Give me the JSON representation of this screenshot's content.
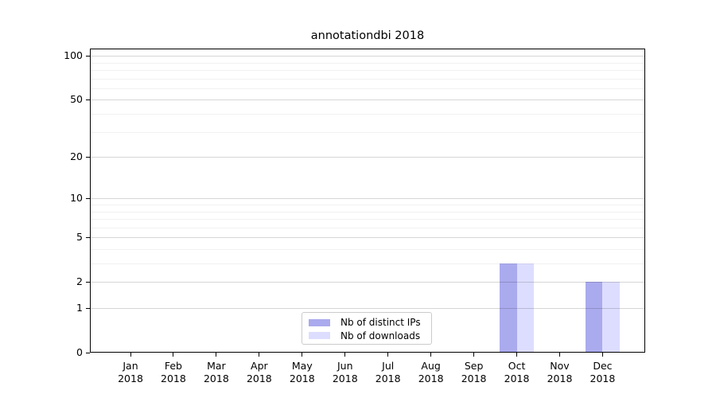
{
  "title": "annotationdbi 2018",
  "legend": {
    "items": [
      {
        "label": "Nb of distinct IPs",
        "color": "#aaaaee"
      },
      {
        "label": "Nb of downloads",
        "color": "#ddddff"
      }
    ]
  },
  "chart_data": {
    "type": "bar",
    "title": "annotationdbi 2018",
    "categories": [
      "Jan",
      "Feb",
      "Mar",
      "Apr",
      "May",
      "Jun",
      "Jul",
      "Aug",
      "Sep",
      "Oct",
      "Nov",
      "Dec"
    ],
    "x_tick_year": "2018",
    "series": [
      {
        "name": "Nb of distinct IPs",
        "color": "#aaaaee",
        "values": [
          0,
          0,
          0,
          0,
          0,
          0,
          0,
          0,
          0,
          3,
          0,
          2
        ]
      },
      {
        "name": "Nb of downloads",
        "color": "#ddddff",
        "values": [
          0,
          0,
          0,
          0,
          0,
          0,
          0,
          0,
          0,
          3,
          0,
          2
        ]
      }
    ],
    "y_axis": {
      "scale": "log10(1+y)",
      "major_ticks": [
        0,
        1,
        2,
        5,
        10,
        20,
        50,
        100
      ],
      "minor_gridlines": [
        3,
        4,
        6,
        7,
        8,
        9,
        30,
        40,
        60,
        70,
        80,
        90
      ],
      "range_top": 112
    },
    "grid": "horizontal",
    "legend_position": "lower-center-inside",
    "frame_color": "#000000",
    "major_grid_color": "#d6d6d6",
    "minor_grid_color": "#f1f1f1"
  }
}
